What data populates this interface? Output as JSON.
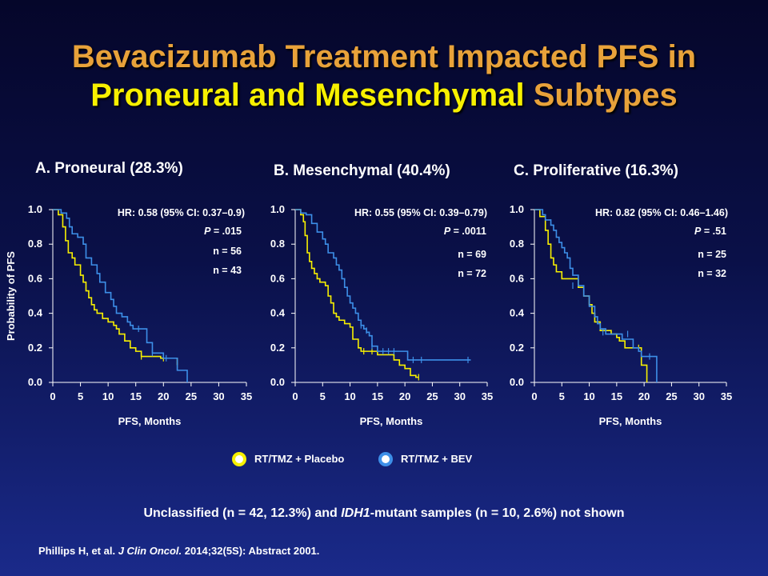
{
  "title": {
    "line1": "Bevacizumab Treatment Impacted PFS in",
    "line2_a": "Proneural and Mesenchymal",
    "line2_b": "Subtypes"
  },
  "colors": {
    "placebo": "#f7f000",
    "bev": "#3d8fe8",
    "title_orange": "#e8a23a"
  },
  "panels": [
    {
      "title": "A. Proneural (28.3%)",
      "hr": "HR: 0.58 (95% CI: 0.37–0.9)",
      "p_label": "P",
      "p_value": " = .015",
      "n_placebo": "n = 56",
      "n_bev": "n = 43"
    },
    {
      "title": "B. Mesenchymal (40.4%)",
      "hr": "HR: 0.55 (95% CI: 0.39–0.79)",
      "p_label": "P",
      "p_value": " = .0011",
      "n_placebo": "n = 69",
      "n_bev": "n = 72"
    },
    {
      "title": "C. Proliferative (16.3%)",
      "hr": "HR: 0.82 (95% CI: 0.46–1.46)",
      "p_label": "P",
      "p_value": " = .51",
      "n_placebo": "n = 25",
      "n_bev": "n = 32"
    }
  ],
  "legend": {
    "placebo": "RT/TMZ + Placebo",
    "bev": "RT/TMZ + BEV"
  },
  "footnote": {
    "part1": "Unclassified (n = 42, 12.3%) and ",
    "italic": "IDH1",
    "part2": "-mutant samples (n = 10, 2.6%) not shown"
  },
  "citation": {
    "part1": "Phillips H, et al. ",
    "italic": "J Clin Oncol.",
    "part2": " 2014;32(5S): Abstract 2001."
  },
  "chart_data": [
    {
      "type": "line",
      "title": "A. Proneural (28.3%)",
      "xlabel": "PFS, Months",
      "ylabel": "Probability of PFS",
      "xlim": [
        0,
        35
      ],
      "ylim": [
        0,
        1
      ],
      "xticks": [
        "0",
        "5",
        "10",
        "15",
        "20",
        "25",
        "30",
        "35"
      ],
      "yticks": [
        "0.0",
        "0.2",
        "0.4",
        "0.6",
        "0.8",
        "1.0"
      ],
      "series": [
        {
          "name": "RT/TMZ + Placebo",
          "points": [
            [
              0,
              1.0
            ],
            [
              1,
              0.97
            ],
            [
              1.8,
              0.9
            ],
            [
              2.3,
              0.82
            ],
            [
              2.8,
              0.75
            ],
            [
              3.5,
              0.72
            ],
            [
              4,
              0.68
            ],
            [
              5,
              0.62
            ],
            [
              5.5,
              0.58
            ],
            [
              6,
              0.53
            ],
            [
              6.5,
              0.49
            ],
            [
              7,
              0.45
            ],
            [
              7.5,
              0.42
            ],
            [
              8,
              0.4
            ],
            [
              9,
              0.37
            ],
            [
              10,
              0.35
            ],
            [
              11,
              0.33
            ],
            [
              11.5,
              0.31
            ],
            [
              12,
              0.28
            ],
            [
              13,
              0.24
            ],
            [
              14,
              0.2
            ],
            [
              15,
              0.18
            ],
            [
              16,
              0.15
            ],
            [
              19,
              0.15
            ],
            [
              19.5,
              0.14
            ],
            [
              21,
              0.14
            ],
            [
              22.5,
              0.1
            ]
          ],
          "censor": [
            [
              16,
              0.15
            ],
            [
              20,
              0.14
            ],
            [
              22.5,
              0.1
            ]
          ]
        },
        {
          "name": "RT/TMZ + BEV",
          "points": [
            [
              0,
              1.0
            ],
            [
              1,
              1.0
            ],
            [
              1.5,
              0.98
            ],
            [
              2.5,
              0.95
            ],
            [
              3,
              0.9
            ],
            [
              3.5,
              0.86
            ],
            [
              4.5,
              0.84
            ],
            [
              5.5,
              0.8
            ],
            [
              6,
              0.72
            ],
            [
              7,
              0.68
            ],
            [
              8,
              0.63
            ],
            [
              8.5,
              0.58
            ],
            [
              9.5,
              0.52
            ],
            [
              10.5,
              0.48
            ],
            [
              11,
              0.44
            ],
            [
              11.5,
              0.4
            ],
            [
              12.5,
              0.38
            ],
            [
              13.5,
              0.35
            ],
            [
              14,
              0.33
            ],
            [
              14.5,
              0.31
            ],
            [
              16,
              0.31
            ],
            [
              17,
              0.23
            ],
            [
              18,
              0.17
            ],
            [
              19,
              0.17
            ],
            [
              20,
              0.14
            ],
            [
              22.5,
              0.07
            ],
            [
              24,
              0.07
            ],
            [
              24.3,
              0.0
            ]
          ],
          "censor": [
            [
              15.5,
              0.31
            ],
            [
              18,
              0.17
            ],
            [
              20.5,
              0.14
            ]
          ]
        }
      ]
    },
    {
      "type": "line",
      "title": "B. Mesenchymal (40.4%)",
      "xlabel": "PFS, Months",
      "xlim": [
        0,
        35
      ],
      "ylim": [
        0,
        1
      ],
      "xticks": [
        "0",
        "5",
        "10",
        "15",
        "20",
        "25",
        "30",
        "35"
      ],
      "yticks": [
        "0.0",
        "0.2",
        "0.4",
        "0.6",
        "0.8",
        "1.0"
      ],
      "series": [
        {
          "name": "RT/TMZ + Placebo",
          "points": [
            [
              0,
              1.0
            ],
            [
              1,
              0.97
            ],
            [
              1.5,
              0.93
            ],
            [
              1.8,
              0.85
            ],
            [
              2.2,
              0.75
            ],
            [
              2.6,
              0.7
            ],
            [
              3,
              0.66
            ],
            [
              3.5,
              0.63
            ],
            [
              4,
              0.6
            ],
            [
              4.5,
              0.58
            ],
            [
              5.5,
              0.56
            ],
            [
              6,
              0.5
            ],
            [
              6.5,
              0.46
            ],
            [
              7,
              0.4
            ],
            [
              7.5,
              0.38
            ],
            [
              8,
              0.36
            ],
            [
              9,
              0.34
            ],
            [
              10,
              0.32
            ],
            [
              10.5,
              0.25
            ],
            [
              11.5,
              0.2
            ],
            [
              12,
              0.18
            ],
            [
              14,
              0.18
            ],
            [
              15,
              0.16
            ],
            [
              17,
              0.16
            ],
            [
              18,
              0.13
            ],
            [
              19,
              0.1
            ],
            [
              20,
              0.08
            ],
            [
              21,
              0.04
            ],
            [
              22,
              0.03
            ],
            [
              22.5,
              0.03
            ]
          ],
          "censor": [
            [
              12.5,
              0.18
            ],
            [
              14,
              0.18
            ],
            [
              22.5,
              0.03
            ]
          ]
        },
        {
          "name": "RT/TMZ + BEV",
          "points": [
            [
              0,
              1.0
            ],
            [
              1,
              0.98
            ],
            [
              2,
              0.97
            ],
            [
              3,
              0.92
            ],
            [
              4,
              0.87
            ],
            [
              5,
              0.83
            ],
            [
              5.5,
              0.8
            ],
            [
              6,
              0.75
            ],
            [
              7,
              0.72
            ],
            [
              7.5,
              0.68
            ],
            [
              8,
              0.65
            ],
            [
              8.5,
              0.6
            ],
            [
              9,
              0.55
            ],
            [
              9.5,
              0.5
            ],
            [
              10,
              0.46
            ],
            [
              10.5,
              0.43
            ],
            [
              11,
              0.4
            ],
            [
              11.5,
              0.36
            ],
            [
              12,
              0.33
            ],
            [
              12.5,
              0.31
            ],
            [
              13,
              0.29
            ],
            [
              13.5,
              0.27
            ],
            [
              14,
              0.21
            ],
            [
              15,
              0.18
            ],
            [
              20,
              0.18
            ],
            [
              20.5,
              0.13
            ],
            [
              32,
              0.13
            ]
          ],
          "censor": [
            [
              12,
              0.33
            ],
            [
              13,
              0.3
            ],
            [
              14,
              0.21
            ],
            [
              16,
              0.18
            ],
            [
              17,
              0.18
            ],
            [
              18,
              0.18
            ],
            [
              21.5,
              0.13
            ],
            [
              23,
              0.13
            ],
            [
              31.5,
              0.13
            ]
          ]
        }
      ]
    },
    {
      "type": "line",
      "title": "C. Proliferative (16.3%)",
      "xlabel": "PFS, Months",
      "xlim": [
        0,
        35
      ],
      "ylim": [
        0,
        1
      ],
      "xticks": [
        "0",
        "5",
        "10",
        "15",
        "20",
        "25",
        "30",
        "35"
      ],
      "yticks": [
        "0.0",
        "0.2",
        "0.4",
        "0.6",
        "0.8",
        "1.0"
      ],
      "series": [
        {
          "name": "RT/TMZ + Placebo",
          "points": [
            [
              0,
              1.0
            ],
            [
              1,
              0.96
            ],
            [
              2,
              0.88
            ],
            [
              2.5,
              0.8
            ],
            [
              3,
              0.72
            ],
            [
              3.5,
              0.68
            ],
            [
              4,
              0.64
            ],
            [
              5,
              0.6
            ],
            [
              7,
              0.6
            ],
            [
              8,
              0.55
            ],
            [
              9,
              0.5
            ],
            [
              10,
              0.45
            ],
            [
              10.5,
              0.4
            ],
            [
              11,
              0.35
            ],
            [
              12,
              0.3
            ],
            [
              14,
              0.28
            ],
            [
              15,
              0.26
            ],
            [
              15.5,
              0.24
            ],
            [
              16.5,
              0.2
            ],
            [
              19,
              0.2
            ],
            [
              19.5,
              0.1
            ],
            [
              20.5,
              0.0
            ]
          ],
          "censor": [
            [
              19,
              0.2
            ]
          ]
        },
        {
          "name": "RT/TMZ + BEV",
          "points": [
            [
              0,
              1.0
            ],
            [
              1.5,
              0.97
            ],
            [
              2,
              0.94
            ],
            [
              3,
              0.91
            ],
            [
              3.5,
              0.88
            ],
            [
              4,
              0.84
            ],
            [
              4.5,
              0.81
            ],
            [
              5,
              0.78
            ],
            [
              5.5,
              0.75
            ],
            [
              6,
              0.72
            ],
            [
              6.5,
              0.66
            ],
            [
              7,
              0.62
            ],
            [
              8,
              0.56
            ],
            [
              9,
              0.5
            ],
            [
              10,
              0.44
            ],
            [
              11,
              0.38
            ],
            [
              11.5,
              0.34
            ],
            [
              12,
              0.31
            ],
            [
              13,
              0.28
            ],
            [
              15,
              0.28
            ],
            [
              16,
              0.25
            ],
            [
              18,
              0.2
            ],
            [
              19,
              0.18
            ],
            [
              19.5,
              0.15
            ],
            [
              22,
              0.15
            ],
            [
              22.3,
              0.0
            ]
          ],
          "censor": [
            [
              7,
              0.56
            ],
            [
              12.5,
              0.29
            ],
            [
              17,
              0.28
            ],
            [
              21,
              0.15
            ]
          ]
        }
      ]
    }
  ]
}
